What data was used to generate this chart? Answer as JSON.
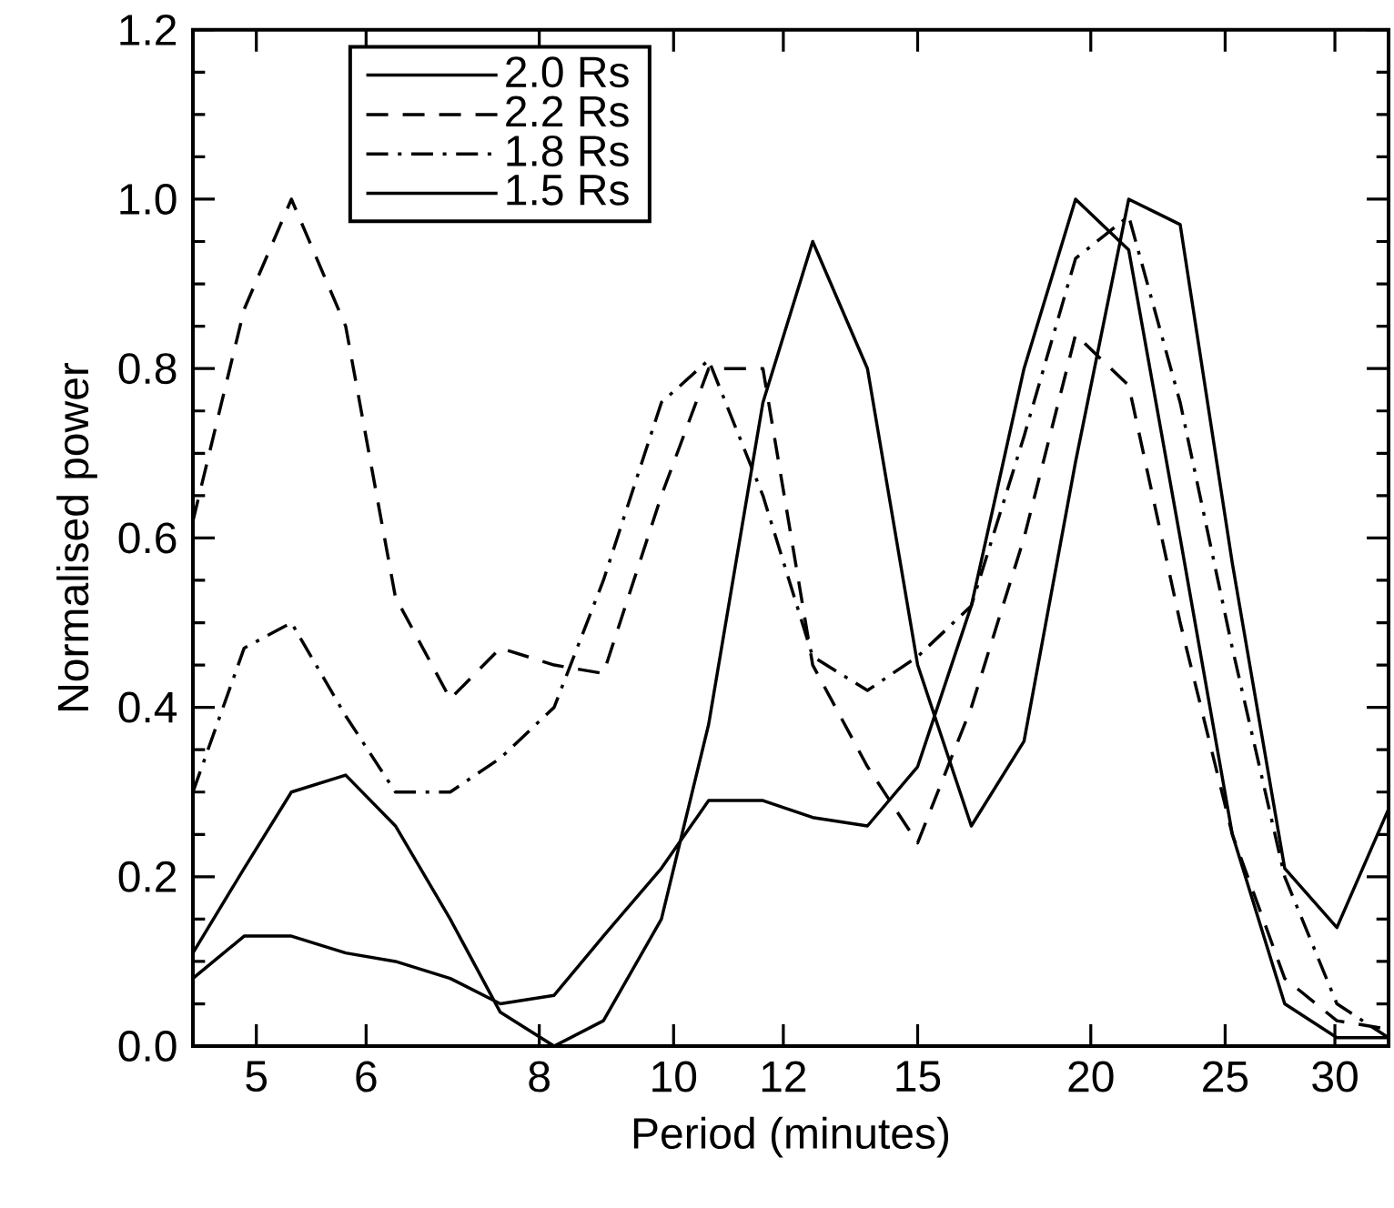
{
  "chart_data": {
    "type": "line",
    "xlabel": "Period (minutes)",
    "ylabel": "Normalised power",
    "log": "x",
    "xlim": [
      4.5,
      32.8
    ],
    "ylim": [
      0,
      1.2
    ],
    "xticks": [
      5,
      6,
      8,
      10,
      12,
      15,
      20,
      25,
      30
    ],
    "yticks": [
      {
        "value": 0,
        "label": "0.0"
      },
      {
        "value": 0.2,
        "label": "0.2"
      },
      {
        "value": 0.4,
        "label": "0.4"
      },
      {
        "value": 0.6,
        "label": "0.6"
      },
      {
        "value": 0.8,
        "label": "0.8"
      },
      {
        "value": 1.0,
        "label": "1.0"
      },
      {
        "value": 1.2,
        "label": "1.2"
      }
    ],
    "x": [
      4.5,
      4.9,
      5.3,
      5.8,
      6.3,
      6.9,
      7.5,
      8.2,
      8.9,
      9.8,
      10.6,
      11.6,
      12.6,
      13.8,
      15.0,
      16.4,
      17.9,
      19.5,
      21.3,
      23.2,
      25.3,
      27.6,
      30.1,
      32.8
    ],
    "legend": "top left",
    "marker": "none",
    "series": [
      {
        "name": "2.0 Rs",
        "color": "#000000",
        "line_style": "solid",
        "values": [
          0.08,
          0.13,
          0.13,
          0.11,
          0.1,
          0.08,
          0.05,
          0.06,
          0.13,
          0.21,
          0.29,
          0.29,
          0.27,
          0.26,
          0.33,
          0.52,
          0.8,
          1.0,
          0.94,
          0.6,
          0.25,
          0.05,
          0.01,
          0.01
        ]
      },
      {
        "name": "2.2 Rs",
        "color": "#000000",
        "line_style": "dashed",
        "values": [
          0.62,
          0.87,
          1.0,
          0.85,
          0.53,
          0.41,
          0.47,
          0.45,
          0.44,
          0.65,
          0.8,
          0.8,
          0.45,
          0.33,
          0.24,
          0.4,
          0.6,
          0.84,
          0.78,
          0.5,
          0.25,
          0.08,
          0.03,
          0.02
        ]
      },
      {
        "name": "1.8 Rs",
        "color": "#000000",
        "line_style": "dashdot",
        "values": [
          0.3,
          0.47,
          0.5,
          0.39,
          0.3,
          0.3,
          0.34,
          0.4,
          0.55,
          0.76,
          0.81,
          0.65,
          0.46,
          0.42,
          0.46,
          0.52,
          0.72,
          0.93,
          0.98,
          0.76,
          0.47,
          0.2,
          0.05,
          0.01
        ]
      },
      {
        "name": "1.5 Rs",
        "color": "#000000",
        "line_style": "solid",
        "values": [
          0.11,
          0.21,
          0.3,
          0.32,
          0.26,
          0.15,
          0.04,
          0.0,
          0.03,
          0.15,
          0.38,
          0.76,
          0.95,
          0.8,
          0.45,
          0.26,
          0.36,
          0.69,
          1.0,
          0.97,
          0.57,
          0.21,
          0.14,
          0.28
        ]
      }
    ]
  }
}
